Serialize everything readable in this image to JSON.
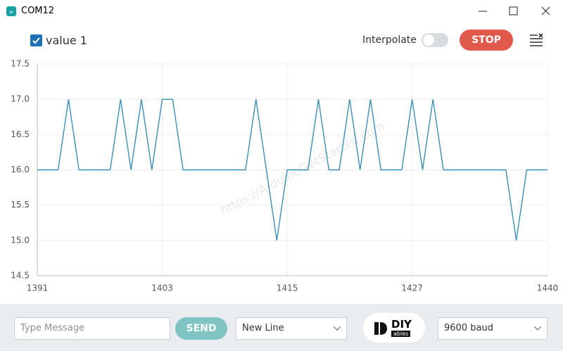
{
  "window": {
    "title": "COM12"
  },
  "toolbar": {
    "interpolate_label": "Interpolate",
    "stop_button": "STOP"
  },
  "chart_data": {
    "type": "line",
    "watermark": "https://ArduinoGetStarted.com",
    "x": [
      1391,
      1392,
      1393,
      1394,
      1395,
      1396,
      1397,
      1398,
      1399,
      1400,
      1401,
      1402,
      1403,
      1404,
      1405,
      1406,
      1407,
      1408,
      1409,
      1410,
      1411,
      1412,
      1413,
      1414,
      1415,
      1416,
      1417,
      1418,
      1419,
      1420,
      1421,
      1422,
      1423,
      1424,
      1425,
      1426,
      1427,
      1428,
      1429,
      1430,
      1431,
      1432,
      1433,
      1434,
      1435,
      1436,
      1437,
      1438,
      1439,
      1440
    ],
    "series": [
      {
        "name": "value 1",
        "color": "#3a8fb7",
        "values": [
          16,
          16,
          16,
          17,
          16,
          16,
          16,
          16,
          17,
          16,
          17,
          16,
          17,
          17,
          16,
          16,
          16,
          16,
          16,
          16,
          16,
          17,
          16,
          15,
          16,
          16,
          16,
          17,
          16,
          16,
          17,
          16,
          17,
          16,
          16,
          16,
          17,
          16,
          17,
          16,
          16,
          16,
          16,
          16,
          16,
          16,
          15,
          16,
          16,
          16
        ]
      }
    ],
    "xlim": [
      1391,
      1440
    ],
    "xticks": [
      1391,
      1403,
      1415,
      1427,
      1440
    ],
    "ylim": [
      14.5,
      17.5
    ],
    "yticks": [
      14.5,
      {
        "value": 15,
        "label": "15.0"
      },
      15.5,
      {
        "value": 16,
        "label": "16.0"
      },
      16.5,
      {
        "value": 17,
        "label": "17.0"
      },
      17.5
    ],
    "grid": true
  },
  "footer": {
    "message_placeholder": "Type Message",
    "send_button": "SEND",
    "line_ending": "New Line",
    "logo_text": "DIY",
    "logo_subtext": "ables",
    "baud_rate": "9600 baud"
  }
}
